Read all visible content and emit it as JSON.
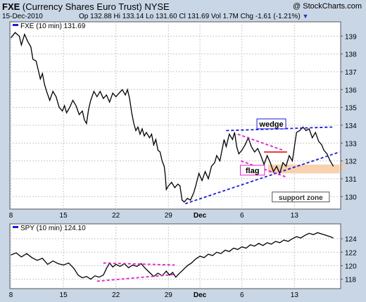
{
  "header": {
    "symbol": "FXE",
    "name": "(Currency Shares Euro Trust)",
    "exchange": "NYSE",
    "watermark": "@ StockCharts.com",
    "date": "15-Dec-2010",
    "stats": "Op 132.88  Hi 133.14  Lo 131.60  Cl 131.69  Vol 1.7M  Chg -1.61 (-1.21%)"
  },
  "colors": {
    "background": "#c9d6e6",
    "panel": "#ffffff",
    "price_line": "#000000",
    "wedge_lines": "#1a1adc",
    "flag_lines": "#e020d0",
    "red_line": "#e01010",
    "support_zone": "#f7c9a0",
    "legend_marker": "#1a1adc"
  },
  "chart_data": [
    {
      "type": "line",
      "panel": "main",
      "legend": "FXE (10 min) 131.69",
      "ylim": [
        129.3,
        139.8
      ],
      "yticks": [
        130,
        131,
        132,
        133,
        134,
        135,
        136,
        137,
        138,
        139
      ],
      "x_labels": [
        {
          "x": 0,
          "text": "8"
        },
        {
          "x": 5,
          "text": "15"
        },
        {
          "x": 10,
          "text": "22"
        },
        {
          "x": 15,
          "text": "29"
        },
        {
          "x": 18,
          "text": "Dec"
        },
        {
          "x": 22,
          "text": "6"
        },
        {
          "x": 27,
          "text": "13"
        }
      ],
      "x_range": [
        -0.1,
        31.4
      ],
      "series": [
        {
          "values": [
            [
              0,
              138.9
            ],
            [
              0.4,
              139.2
            ],
            [
              0.8,
              139.0
            ],
            [
              1.0,
              138.5
            ],
            [
              1.3,
              139.1
            ],
            [
              1.6,
              138.7
            ],
            [
              1.9,
              138.4
            ],
            [
              2.1,
              137.7
            ],
            [
              2.4,
              137.6
            ],
            [
              2.6,
              137.1
            ],
            [
              2.8,
              136.6
            ],
            [
              3.0,
              136.9
            ],
            [
              3.2,
              136.3
            ],
            [
              3.4,
              135.9
            ],
            [
              3.7,
              135.4
            ],
            [
              4.0,
              135.9
            ],
            [
              4.3,
              135.6
            ],
            [
              4.6,
              135.0
            ],
            [
              4.9,
              134.8
            ],
            [
              5.1,
              135.1
            ],
            [
              5.3,
              134.7
            ],
            [
              5.6,
              135.0
            ],
            [
              5.9,
              135.4
            ],
            [
              6.2,
              135.1
            ],
            [
              6.5,
              134.6
            ],
            [
              6.8,
              134.8
            ],
            [
              7.0,
              134.3
            ],
            [
              7.2,
              134.1
            ],
            [
              7.4,
              134.9
            ],
            [
              7.6,
              135.4
            ],
            [
              7.9,
              135.9
            ],
            [
              8.2,
              135.6
            ],
            [
              8.5,
              135.9
            ],
            [
              8.8,
              135.5
            ],
            [
              9.1,
              135.7
            ],
            [
              9.4,
              135.3
            ],
            [
              9.7,
              135.8
            ],
            [
              10.0,
              135.6
            ],
            [
              10.3,
              135.8
            ],
            [
              10.6,
              136.0
            ],
            [
              10.9,
              135.7
            ],
            [
              11.1,
              136.0
            ],
            [
              11.3,
              135.5
            ],
            [
              11.5,
              134.7
            ],
            [
              11.7,
              134.1
            ],
            [
              11.9,
              133.7
            ],
            [
              12.1,
              133.9
            ],
            [
              12.3,
              133.5
            ],
            [
              12.5,
              133.8
            ],
            [
              12.7,
              133.4
            ],
            [
              12.9,
              133.6
            ],
            [
              13.2,
              133.3
            ],
            [
              13.4,
              133.5
            ],
            [
              13.6,
              132.9
            ],
            [
              13.8,
              133.2
            ],
            [
              14.0,
              132.6
            ],
            [
              14.2,
              132.5
            ],
            [
              14.4,
              132.0
            ],
            [
              14.6,
              131.7
            ],
            [
              14.7,
              131.2
            ],
            [
              14.8,
              130.4
            ],
            [
              15.0,
              130.6
            ],
            [
              15.3,
              130.8
            ],
            [
              15.6,
              130.5
            ],
            [
              15.9,
              130.7
            ],
            [
              16.1,
              130.6
            ],
            [
              16.3,
              129.8
            ],
            [
              16.5,
              129.7
            ],
            [
              16.8,
              129.9
            ],
            [
              17.1,
              129.8
            ],
            [
              17.4,
              130.2
            ],
            [
              17.6,
              130.6
            ],
            [
              17.9,
              131.3
            ],
            [
              18.2,
              130.9
            ],
            [
              18.5,
              131.4
            ],
            [
              18.8,
              131.0
            ],
            [
              19.1,
              131.7
            ],
            [
              19.4,
              131.9
            ],
            [
              19.6,
              132.3
            ],
            [
              19.9,
              132.0
            ],
            [
              20.1,
              132.6
            ],
            [
              20.3,
              133.2
            ],
            [
              20.5,
              132.8
            ],
            [
              20.8,
              133.5
            ],
            [
              21.1,
              133.2
            ],
            [
              21.3,
              133.6
            ],
            [
              21.5,
              132.8
            ],
            [
              21.7,
              132.4
            ],
            [
              22.0,
              132.6
            ],
            [
              22.3,
              132.9
            ],
            [
              22.6,
              133.3
            ],
            [
              22.9,
              132.8
            ],
            [
              23.2,
              132.5
            ],
            [
              23.5,
              132.7
            ],
            [
              23.8,
              132.3
            ],
            [
              24.1,
              131.8
            ],
            [
              24.4,
              132.3
            ],
            [
              24.7,
              131.9
            ],
            [
              25.0,
              131.4
            ],
            [
              25.3,
              131.7
            ],
            [
              25.6,
              131.3
            ],
            [
              25.9,
              131.9
            ],
            [
              26.2,
              131.7
            ],
            [
              26.5,
              132.3
            ],
            [
              26.8,
              132.0
            ],
            [
              27.0,
              132.8
            ],
            [
              27.2,
              133.6
            ],
            [
              27.5,
              133.7
            ],
            [
              27.8,
              133.9
            ],
            [
              28.1,
              133.7
            ],
            [
              28.4,
              133.8
            ],
            [
              28.7,
              133.3
            ],
            [
              29.0,
              133.6
            ],
            [
              29.3,
              133.1
            ],
            [
              29.6,
              132.9
            ],
            [
              29.8,
              132.6
            ],
            [
              30.1,
              132.4
            ],
            [
              30.4,
              132.0
            ],
            [
              30.7,
              131.7
            ]
          ]
        }
      ],
      "annotations": [
        {
          "kind": "line",
          "color": "wedge",
          "from": [
            16.6,
            129.6
          ],
          "to": [
            31.3,
            132.5
          ]
        },
        {
          "kind": "line",
          "color": "wedge",
          "from": [
            20.5,
            133.7
          ],
          "to": [
            30.6,
            133.9
          ]
        },
        {
          "kind": "line",
          "color": "flag",
          "from": [
            21.6,
            133.5
          ],
          "to": [
            25.9,
            132.6
          ]
        },
        {
          "kind": "line",
          "color": "flag",
          "from": [
            21.9,
            132.0
          ],
          "to": [
            26.2,
            131.1
          ]
        },
        {
          "kind": "line",
          "color": "red",
          "from": [
            24.1,
            132.5
          ],
          "to": [
            26.3,
            132.5
          ]
        },
        {
          "kind": "band",
          "x": [
            24.5,
            31.3
          ],
          "y": [
            131.3,
            131.8
          ]
        },
        {
          "kind": "label",
          "text": "wedge",
          "at": [
            24.8,
            134.0
          ]
        },
        {
          "kind": "label",
          "text": "flag",
          "at": [
            23.0,
            131.4
          ]
        },
        {
          "kind": "label",
          "text": "support zone",
          "at": [
            27.6,
            129.9
          ]
        }
      ]
    },
    {
      "type": "line",
      "panel": "lower",
      "legend": "SPY (10 min) 124.10",
      "ylim": [
        116.6,
        126.2
      ],
      "yticks": [
        118,
        120,
        122,
        124
      ],
      "x_labels": [
        {
          "x": 0,
          "text": "8"
        },
        {
          "x": 5,
          "text": "15"
        },
        {
          "x": 10,
          "text": "22"
        },
        {
          "x": 15,
          "text": "29"
        },
        {
          "x": 18,
          "text": "Dec"
        },
        {
          "x": 22,
          "text": "6"
        },
        {
          "x": 27,
          "text": "13"
        }
      ],
      "x_range": [
        -0.1,
        31.4
      ],
      "series": [
        {
          "values": [
            [
              0,
              121.6
            ],
            [
              0.5,
              121.9
            ],
            [
              1.0,
              121.3
            ],
            [
              1.5,
              121.8
            ],
            [
              2.0,
              121.2
            ],
            [
              2.5,
              120.8
            ],
            [
              3.0,
              121.1
            ],
            [
              3.5,
              120.2
            ],
            [
              4.0,
              120.7
            ],
            [
              4.5,
              120.3
            ],
            [
              5.0,
              120.1
            ],
            [
              5.5,
              120.4
            ],
            [
              6.0,
              119.6
            ],
            [
              6.4,
              118.6
            ],
            [
              6.8,
              118.2
            ],
            [
              7.2,
              118.4
            ],
            [
              7.6,
              118.0
            ],
            [
              8.0,
              118.5
            ],
            [
              8.4,
              118.3
            ],
            [
              8.8,
              118.6
            ],
            [
              9.1,
              119.6
            ],
            [
              9.4,
              120.4
            ],
            [
              9.7,
              119.8
            ],
            [
              10.0,
              120.2
            ],
            [
              10.4,
              119.9
            ],
            [
              10.8,
              120.3
            ],
            [
              11.2,
              119.7
            ],
            [
              11.6,
              120.1
            ],
            [
              12.0,
              119.9
            ],
            [
              12.4,
              120.3
            ],
            [
              12.8,
              119.6
            ],
            [
              13.2,
              119.0
            ],
            [
              13.6,
              118.4
            ],
            [
              14.0,
              118.9
            ],
            [
              14.4,
              118.5
            ],
            [
              14.8,
              119.2
            ],
            [
              15.1,
              118.6
            ],
            [
              15.4,
              119.0
            ],
            [
              15.7,
              118.3
            ],
            [
              16.0,
              118.8
            ],
            [
              16.4,
              119.4
            ],
            [
              16.8,
              120.0
            ],
            [
              17.2,
              120.4
            ],
            [
              17.6,
              121.0
            ],
            [
              18.0,
              121.4
            ],
            [
              18.4,
              121.2
            ],
            [
              18.8,
              121.7
            ],
            [
              19.2,
              121.5
            ],
            [
              19.6,
              122.0
            ],
            [
              20.0,
              121.8
            ],
            [
              20.4,
              122.3
            ],
            [
              20.8,
              122.1
            ],
            [
              21.2,
              122.6
            ],
            [
              21.6,
              122.4
            ],
            [
              22.0,
              122.8
            ],
            [
              22.4,
              122.6
            ],
            [
              22.8,
              123.1
            ],
            [
              23.2,
              122.9
            ],
            [
              23.6,
              123.3
            ],
            [
              24.0,
              123.0
            ],
            [
              24.4,
              123.4
            ],
            [
              24.8,
              123.2
            ],
            [
              25.2,
              123.6
            ],
            [
              25.6,
              123.4
            ],
            [
              26.0,
              123.8
            ],
            [
              26.4,
              123.6
            ],
            [
              26.8,
              124.0
            ],
            [
              27.2,
              124.3
            ],
            [
              27.6,
              124.1
            ],
            [
              28.0,
              124.5
            ],
            [
              28.4,
              124.8
            ],
            [
              28.8,
              124.6
            ],
            [
              29.2,
              124.9
            ],
            [
              29.6,
              124.7
            ],
            [
              30.0,
              124.5
            ],
            [
              30.4,
              124.3
            ],
            [
              30.7,
              124.1
            ]
          ]
        }
      ],
      "annotations": [
        {
          "kind": "line",
          "color": "flag",
          "from": [
            8.8,
            120.4
          ],
          "to": [
            15.6,
            120.1
          ]
        },
        {
          "kind": "line",
          "color": "flag",
          "from": [
            8.2,
            117.7
          ],
          "to": [
            15.6,
            118.7
          ]
        }
      ]
    }
  ]
}
